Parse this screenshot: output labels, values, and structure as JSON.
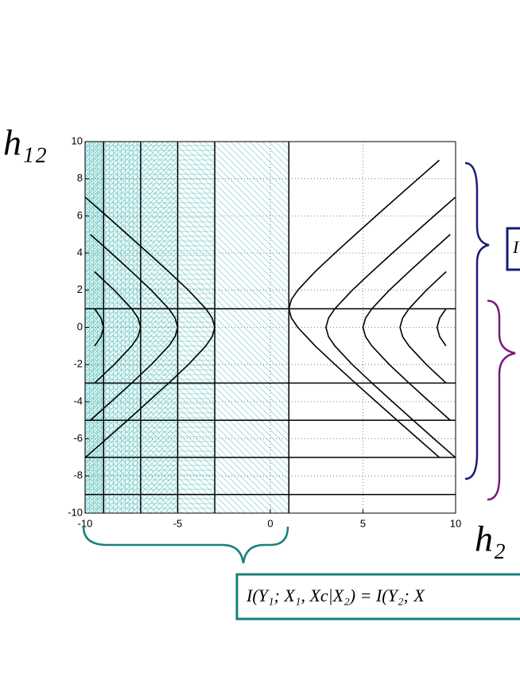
{
  "chart_data": {
    "type": "line",
    "x_label": "h₂",
    "y_label": "h₁₂",
    "xlim": [
      -10,
      10
    ],
    "ylim": [
      -10,
      10
    ],
    "xticks": [
      -10,
      -5,
      0,
      5,
      10
    ],
    "yticks": [
      -10,
      -8,
      -6,
      -4,
      -2,
      0,
      2,
      4,
      6,
      8,
      10
    ],
    "grid": true,
    "color": "#000000",
    "shade_color": "#7fcfcf",
    "shaded_regions": [
      [
        -10,
        1
      ],
      [
        -10,
        -3
      ],
      [
        -10,
        -5
      ],
      [
        -10,
        -7
      ],
      [
        -10,
        -9
      ]
    ],
    "hlines": [
      1,
      -3,
      -5,
      -7,
      -9
    ],
    "vlines": [
      -9,
      -7,
      -5,
      -3,
      1
    ],
    "series": [
      {
        "x": [
          -9.98,
          -8.84,
          -7.71,
          -6.59,
          -5.49,
          -4.42,
          -3.48,
          -3.14,
          -3,
          -3.14,
          -3.48,
          -4.42,
          -5.49,
          -6.59,
          -7.71,
          -8.84,
          -9.98
        ],
        "y": [
          -7,
          -6,
          -5,
          -4,
          -3,
          -2,
          -1,
          -0.5,
          0,
          0.5,
          1,
          2,
          3,
          4,
          5,
          6,
          7
        ]
      },
      {
        "x": [
          -9.71,
          -8.59,
          -7.49,
          -6.42,
          -5.48,
          -5.14,
          -5,
          -5.14,
          -5.48,
          -6.42,
          -7.49,
          -8.59,
          -9.71
        ],
        "y": [
          -5,
          -4,
          -3,
          -2,
          -1,
          -0.5,
          0,
          0.5,
          1,
          2,
          3,
          4,
          5
        ]
      },
      {
        "x": [
          -9.49,
          -8.42,
          -7.48,
          -7.14,
          -7,
          -7.14,
          -7.48,
          -8.42,
          -9.49
        ],
        "y": [
          -3,
          -2,
          -1,
          -0.5,
          0,
          0.5,
          1,
          2,
          3
        ]
      },
      {
        "x": [
          -9.48,
          -9.14,
          -9,
          -9.14,
          -9.48
        ],
        "y": [
          -1,
          -0.5,
          0,
          0.5,
          1
        ]
      },
      {
        "x": [
          9.12,
          7.98,
          6.84,
          5.71,
          4.59,
          3.49,
          2.42,
          1.48,
          1.14,
          1,
          1.14,
          1.48,
          2.42,
          3.49,
          4.59,
          5.71,
          6.84,
          7.98,
          9.12
        ],
        "y": [
          -7,
          -6,
          -5,
          -4,
          -3,
          -2,
          -1,
          0,
          0.5,
          1,
          1.5,
          2,
          3,
          4,
          5,
          6,
          7,
          8,
          9
        ]
      },
      {
        "x": [
          9.98,
          8.84,
          7.71,
          6.59,
          5.49,
          4.42,
          3.48,
          3.14,
          3,
          3.14,
          3.48,
          4.42,
          5.49,
          6.59,
          7.71,
          8.84,
          9.98
        ],
        "y": [
          -7,
          -6,
          -5,
          -4,
          -3,
          -2,
          -1,
          -0.5,
          0,
          0.5,
          1,
          2,
          3,
          4,
          5,
          6,
          7
        ]
      },
      {
        "x": [
          9.71,
          8.59,
          7.49,
          6.42,
          5.48,
          5.14,
          5,
          5.14,
          5.48,
          6.42,
          7.49,
          8.59,
          9.71
        ],
        "y": [
          -5,
          -4,
          -3,
          -2,
          -1,
          -0.5,
          0,
          0.5,
          1,
          2,
          3,
          4,
          5
        ]
      },
      {
        "x": [
          9.49,
          8.42,
          7.48,
          7.14,
          7,
          7.14,
          7.48,
          8.42,
          9.49
        ],
        "y": [
          -3,
          -2,
          -1,
          -0.5,
          0,
          0.5,
          1,
          2,
          3
        ]
      },
      {
        "x": [
          9.48,
          9.14,
          9,
          9.14,
          9.48
        ],
        "y": [
          -1,
          -0.5,
          0,
          0.5,
          1
        ]
      }
    ],
    "annotations": [
      "I(Y₁; X₁, Xc|X₂) = I(Y₂; X",
      "I"
    ]
  }
}
